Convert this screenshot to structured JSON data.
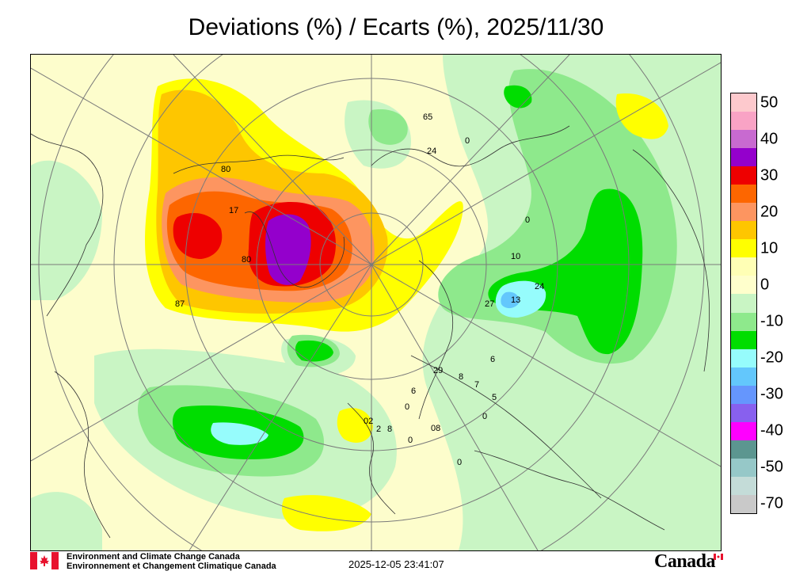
{
  "title": "Deviations (%) / Ecarts (%), 2025/11/30",
  "legend": {
    "entries": [
      {
        "label": "50",
        "color": "#fdc9cd"
      },
      {
        "label": "",
        "color": "#f9a3c5"
      },
      {
        "label": "40",
        "color": "#c86ad0"
      },
      {
        "label": "",
        "color": "#9400cc"
      },
      {
        "label": "30",
        "color": "#ee0000"
      },
      {
        "label": "",
        "color": "#fd6600"
      },
      {
        "label": "20",
        "color": "#fd9560"
      },
      {
        "label": "",
        "color": "#fec600"
      },
      {
        "label": "10",
        "color": "#ffff00"
      },
      {
        "label": "",
        "color": "#ffffb5"
      },
      {
        "label": "0",
        "color": "#ffffcc"
      },
      {
        "label": "",
        "color": "#c9f5c4"
      },
      {
        "label": "-10",
        "color": "#8ee98c"
      },
      {
        "label": "",
        "color": "#00dd00"
      },
      {
        "label": "-20",
        "color": "#96fcfc"
      },
      {
        "label": "",
        "color": "#63c7fc"
      },
      {
        "label": "-30",
        "color": "#6596fd"
      },
      {
        "label": "",
        "color": "#8860ee"
      },
      {
        "label": "-40",
        "color": "#ff00ff"
      },
      {
        "label": "",
        "color": "#5c9690"
      },
      {
        "label": "-50",
        "color": "#96c8c8"
      },
      {
        "label": "",
        "color": "#c4dcd8"
      },
      {
        "label": "-70",
        "color": "#c9c9c9"
      }
    ]
  },
  "map": {
    "station_labels": [
      "65",
      "24",
      "0",
      "80",
      "17",
      "80",
      "87",
      "10",
      "27",
      "13",
      "24",
      "0",
      "29",
      "8",
      "7",
      "6",
      "5",
      "0",
      "0",
      "08",
      "0",
      "02",
      "2",
      "6",
      "8",
      "0"
    ]
  },
  "footer": {
    "agency_en": "Environment and Climate Change Canada",
    "agency_fr": "Environnement et Changement Climatique Canada",
    "timestamp": "2025-12-05 23:41:07",
    "wordmark": "Canada"
  }
}
